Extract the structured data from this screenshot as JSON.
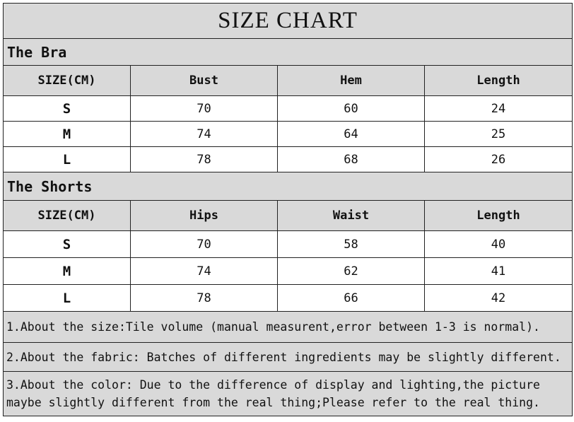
{
  "title": "SIZE CHART",
  "bra": {
    "label": "The Bra",
    "headers": [
      "SIZE(CM)",
      "Bust",
      "Hem",
      "Length"
    ],
    "rows": [
      [
        "S",
        "70",
        "60",
        "24"
      ],
      [
        "M",
        "74",
        "64",
        "25"
      ],
      [
        "L",
        "78",
        "68",
        "26"
      ]
    ]
  },
  "shorts": {
    "label": "The Shorts",
    "headers": [
      "SIZE(CM)",
      "Hips",
      "Waist",
      "Length"
    ],
    "rows": [
      [
        "S",
        "70",
        "58",
        "40"
      ],
      [
        "M",
        "74",
        "62",
        "41"
      ],
      [
        "L",
        "78",
        "66",
        "42"
      ]
    ]
  },
  "notes": [
    "1.About the size:Tile volume (manual measurent,error between 1-3 is normal).",
    "2.About the fabric: Batches of different ingredients may be slightly different.",
    "3.About the color: Due to the difference of display and lighting,the picture maybe slightly different from the real thing;Please refer to the real thing."
  ],
  "colors": {
    "header_bg": "#d9d9d9",
    "border": "#222222"
  }
}
